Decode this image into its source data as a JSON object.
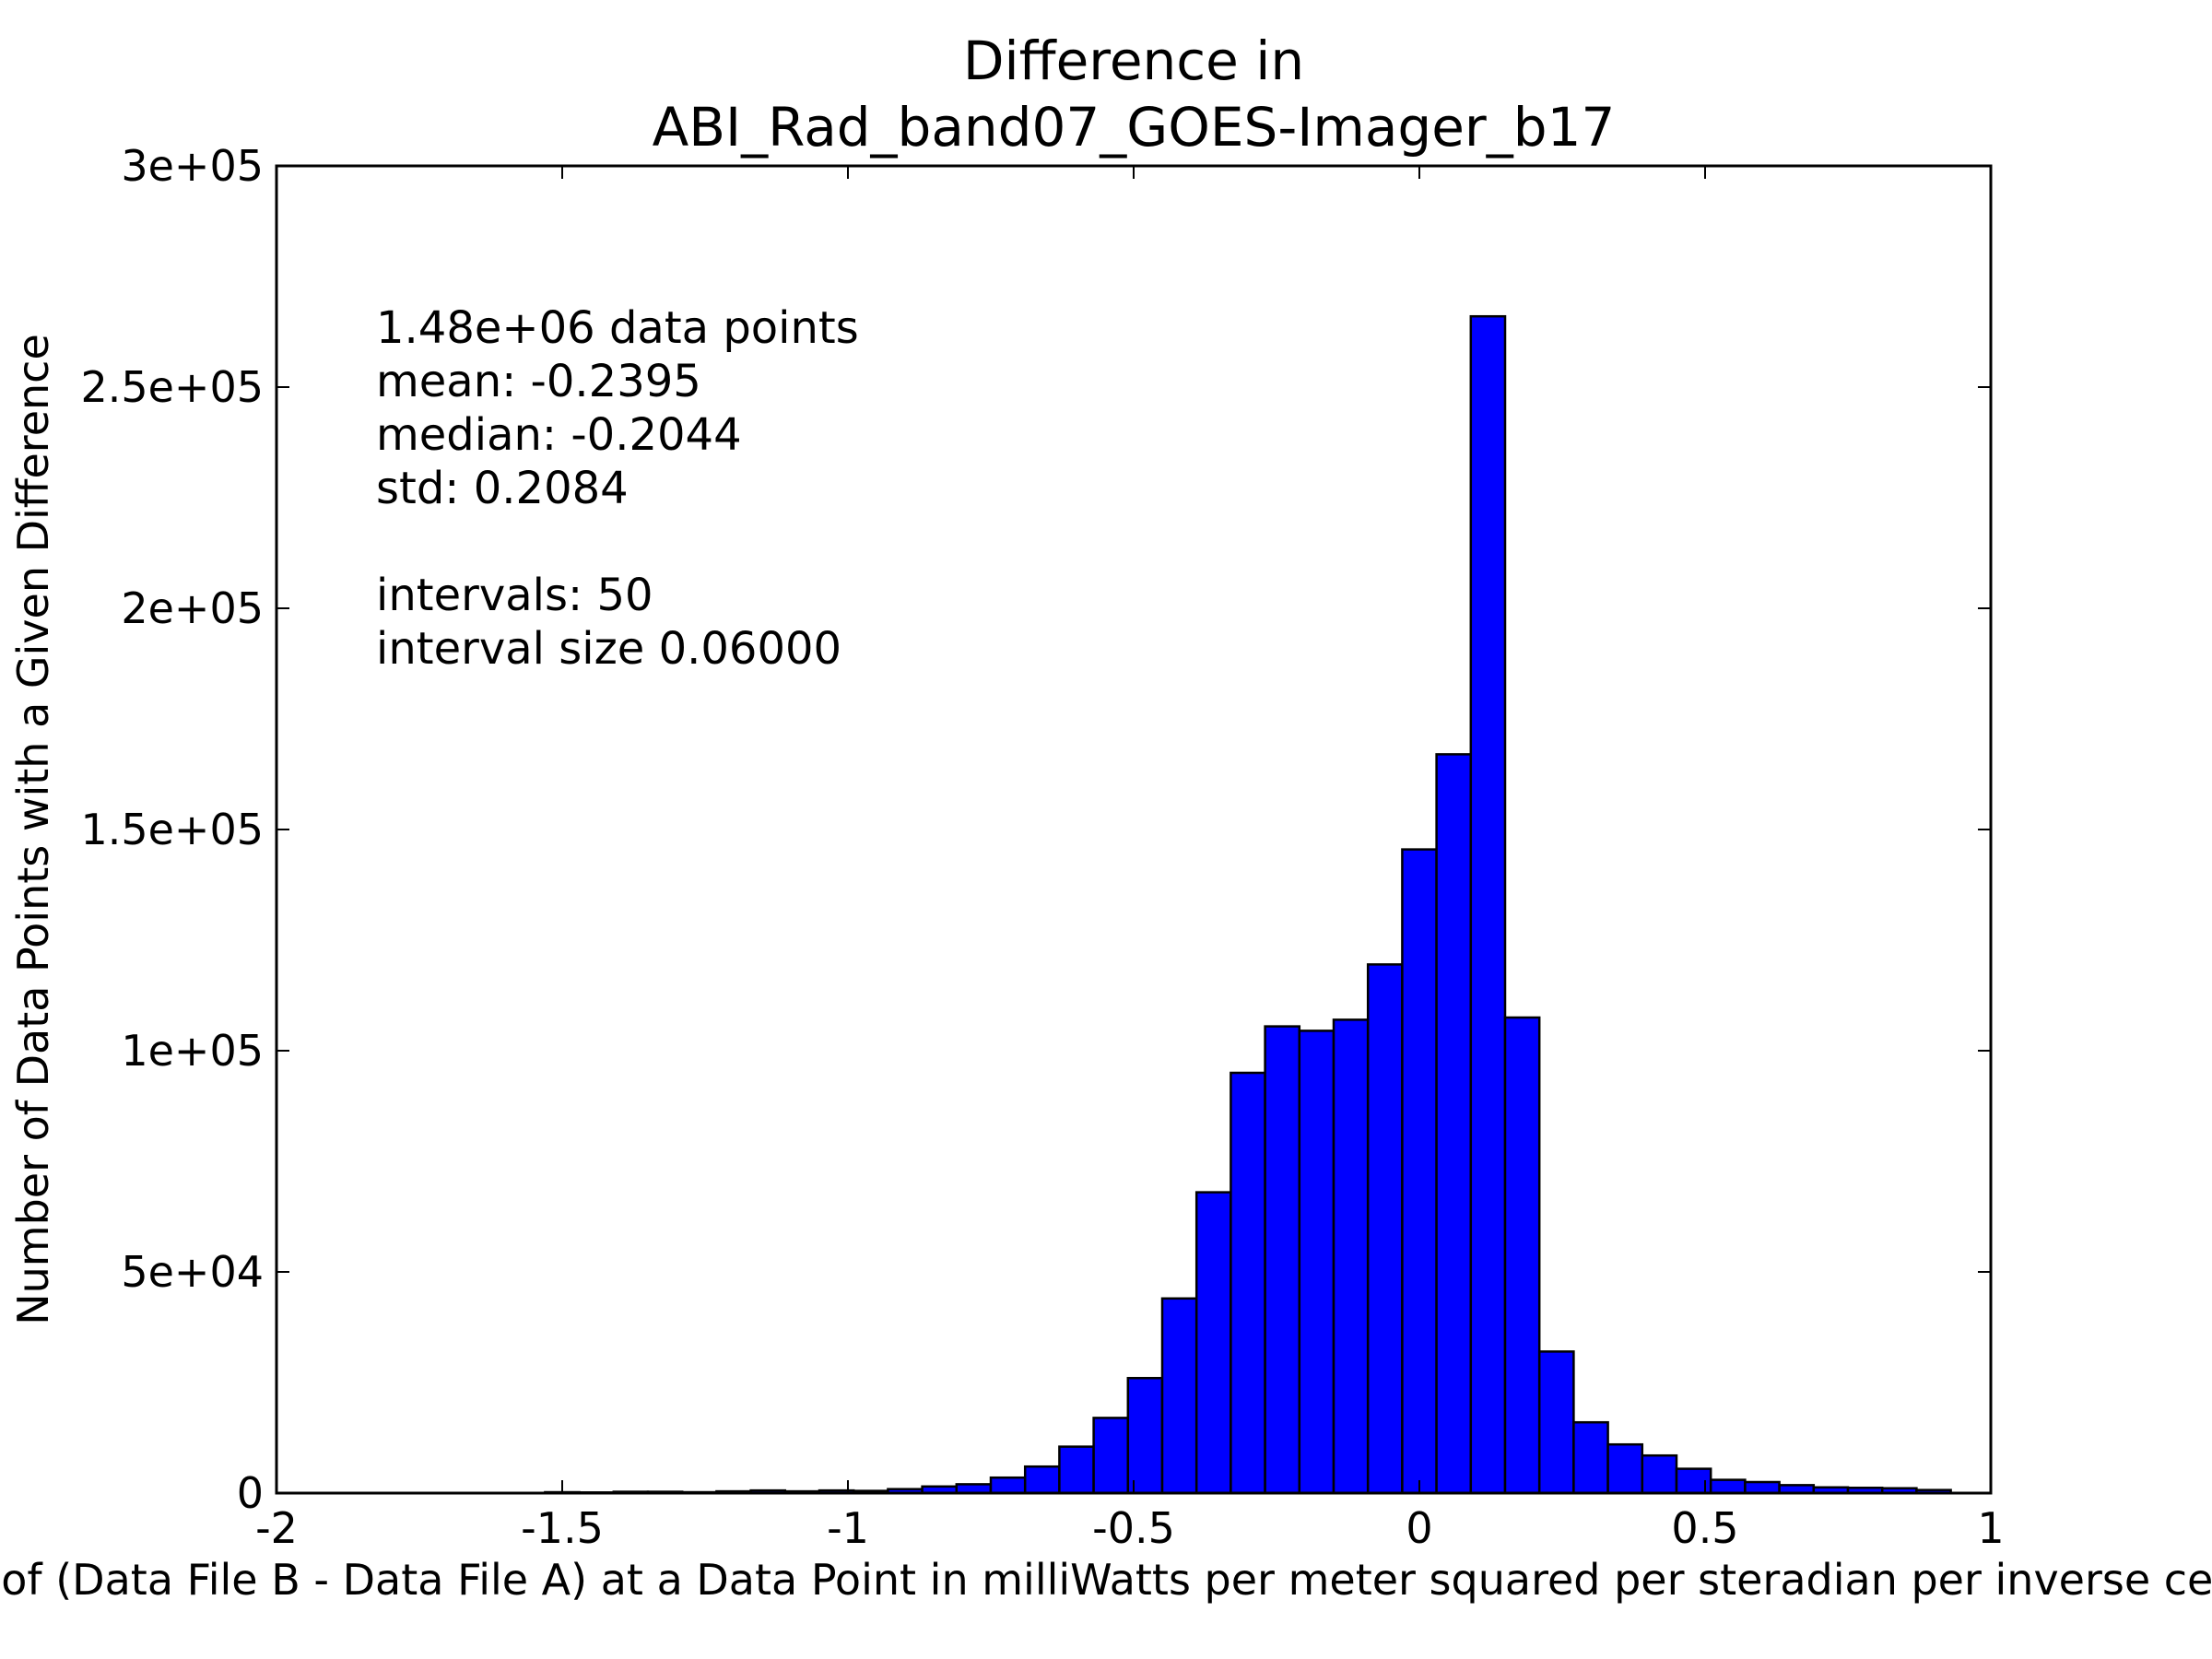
{
  "chart_data": {
    "type": "bar",
    "title": [
      "Difference in",
      "ABI_Rad_band07_GOES-Imager_b17"
    ],
    "xlabel": "Value of (Data File B - Data File A) at a Data Point in milliWatts per meter squared per steradian per inverse centimeter",
    "ylabel": "Number of Data Points with a Given Difference",
    "xlim": [
      -2,
      1
    ],
    "ylim": [
      0,
      300000
    ],
    "x_ticks": [
      -2,
      -1.5,
      -1,
      -0.5,
      0,
      0.5,
      1
    ],
    "x_tick_labels": [
      "-2",
      "-1.5",
      "-1",
      "-0.5",
      "0",
      "0.5",
      "1"
    ],
    "y_ticks": [
      0,
      50000,
      100000,
      150000,
      200000,
      250000,
      300000
    ],
    "y_tick_labels": [
      "0",
      "5e+04",
      "1e+05",
      "1.5e+05",
      "2e+05",
      "2.5e+05",
      "3e+05"
    ],
    "grid": false,
    "bar_color": "#0000ff",
    "bin_start": -1.53,
    "bin_width": 0.06,
    "values": [
      200,
      150,
      300,
      300,
      200,
      400,
      600,
      400,
      600,
      500,
      900,
      1500,
      2000,
      3500,
      6000,
      10500,
      17000,
      26000,
      44000,
      68000,
      95000,
      105500,
      104500,
      107000,
      119500,
      145500,
      167000,
      266000,
      107500,
      32000,
      16000,
      11000,
      8500,
      5500,
      3000,
      2500,
      1800,
      1300,
      1200,
      1100,
      700
    ],
    "annotations": [
      "1.48e+06 data points",
      "mean: -0.2395",
      "median: -0.2044",
      "std: 0.2084",
      "",
      "intervals: 50",
      "interval size 0.06000"
    ]
  }
}
